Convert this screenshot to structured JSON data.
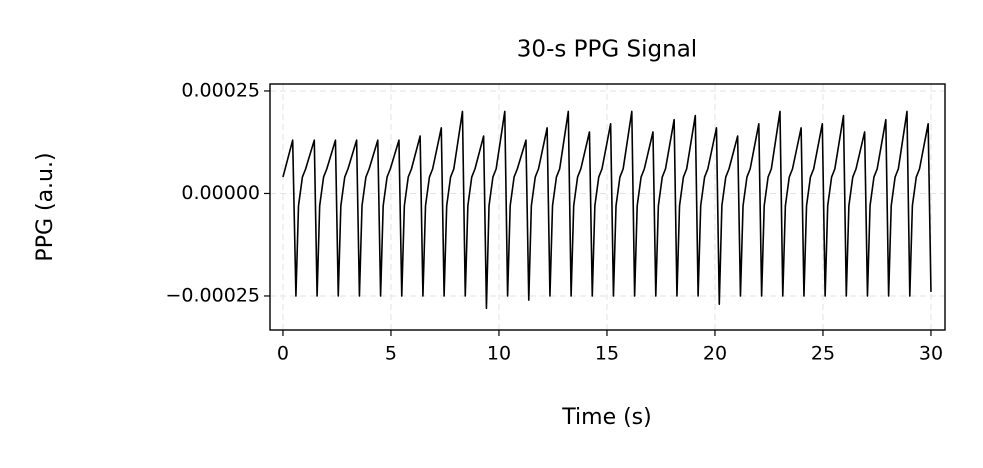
{
  "chart_data": {
    "type": "line",
    "title": "30-s PPG Signal",
    "xlabel": "Time (s)",
    "ylabel": "PPG (a.u.)",
    "xlim": [
      -0.6,
      30.65
    ],
    "ylim": [
      -0.000333,
      0.000267
    ],
    "xticks": [
      0,
      5,
      10,
      15,
      20,
      25,
      30
    ],
    "yticks": [
      {
        "value": 0.00025,
        "label": "0.00025"
      },
      {
        "value": 0,
        "label": "0.00000"
      },
      {
        "value": -0.00025,
        "label": "−0.00025"
      }
    ],
    "grid": true,
    "series": [
      {
        "color": "#000000",
        "x": [
          0,
          0.45,
          0.6,
          0.72,
          0.9,
          1.05,
          1.45,
          1.58,
          1.7,
          1.88,
          2.03,
          2.43,
          2.56,
          2.68,
          2.86,
          3.01,
          3.41,
          3.54,
          3.66,
          3.84,
          3.99,
          4.39,
          4.52,
          4.64,
          4.82,
          4.97,
          5.37,
          5.5,
          5.62,
          5.8,
          5.95,
          6.35,
          6.48,
          6.6,
          6.78,
          6.93,
          7.33,
          7.46,
          7.58,
          7.76,
          7.91,
          8.31,
          8.44,
          8.56,
          8.74,
          8.89,
          9.29,
          9.42,
          9.54,
          9.72,
          9.87,
          10.27,
          10.4,
          10.52,
          10.7,
          10.85,
          11.25,
          11.38,
          11.5,
          11.68,
          11.83,
          12.23,
          12.36,
          12.48,
          12.66,
          12.81,
          13.21,
          13.34,
          13.46,
          13.64,
          13.79,
          14.19,
          14.32,
          14.44,
          14.62,
          14.77,
          15.17,
          15.3,
          15.42,
          15.6,
          15.75,
          16.15,
          16.28,
          16.4,
          16.58,
          16.73,
          17.13,
          17.26,
          17.38,
          17.56,
          17.71,
          18.11,
          18.24,
          18.36,
          18.54,
          18.69,
          19.09,
          19.22,
          19.34,
          19.52,
          19.67,
          20.07,
          20.2,
          20.32,
          20.5,
          20.65,
          21.05,
          21.18,
          21.3,
          21.48,
          21.63,
          22.03,
          22.16,
          22.28,
          22.46,
          22.61,
          23.01,
          23.14,
          23.26,
          23.44,
          23.59,
          23.99,
          24.12,
          24.24,
          24.42,
          24.57,
          24.97,
          25.1,
          25.22,
          25.4,
          25.55,
          25.95,
          26.08,
          26.2,
          26.38,
          26.53,
          26.93,
          27.06,
          27.18,
          27.36,
          27.51,
          27.91,
          28.04,
          28.16,
          28.34,
          28.49,
          28.89,
          29.02,
          29.14,
          29.32,
          29.47,
          29.87,
          30
        ],
        "values": [
          4e-05,
          0.00013,
          -0.00025,
          -3e-05,
          4e-05,
          6e-05,
          0.00013,
          -0.00025,
          -3e-05,
          4e-05,
          6e-05,
          0.00013,
          -0.00025,
          -3e-05,
          4e-05,
          6e-05,
          0.00013,
          -0.00025,
          -3e-05,
          4e-05,
          6e-05,
          0.00013,
          -0.00025,
          -3e-05,
          4e-05,
          6e-05,
          0.00013,
          -0.00025,
          -3e-05,
          4e-05,
          6e-05,
          0.00014,
          -0.00025,
          -3e-05,
          4e-05,
          6e-05,
          0.00016,
          -0.00025,
          -3e-05,
          4e-05,
          6e-05,
          0.0002,
          -0.00025,
          -3e-05,
          4e-05,
          6e-05,
          0.00014,
          -0.00028,
          -3e-05,
          4e-05,
          6e-05,
          0.0002,
          -0.00025,
          -3e-05,
          4e-05,
          6e-05,
          0.00013,
          -0.00026,
          -3e-05,
          4e-05,
          6e-05,
          0.00016,
          -0.00025,
          -3e-05,
          4e-05,
          6e-05,
          0.0002,
          -0.00025,
          -3e-05,
          4e-05,
          6e-05,
          0.00015,
          -0.00025,
          -3e-05,
          4e-05,
          6e-05,
          0.00017,
          -0.00025,
          -3e-05,
          4e-05,
          6e-05,
          0.0002,
          -0.00025,
          -3e-05,
          4e-05,
          6e-05,
          0.00015,
          -0.00025,
          -3e-05,
          4e-05,
          6e-05,
          0.00018,
          -0.00025,
          -3e-05,
          4e-05,
          6e-05,
          0.00019,
          -0.00025,
          -3e-05,
          4e-05,
          6e-05,
          0.00016,
          -0.00027,
          -3e-05,
          4e-05,
          6e-05,
          0.00014,
          -0.00025,
          -3e-05,
          4e-05,
          6e-05,
          0.00017,
          -0.00025,
          -3e-05,
          4e-05,
          6e-05,
          0.0002,
          -0.00025,
          -3e-05,
          4e-05,
          6e-05,
          0.00016,
          -0.00025,
          -3e-05,
          4e-05,
          6e-05,
          0.00017,
          -0.00025,
          -3e-05,
          4e-05,
          6e-05,
          0.00019,
          -0.00025,
          -3e-05,
          4e-05,
          6e-05,
          0.00015,
          -0.00025,
          -3e-05,
          4e-05,
          6e-05,
          0.00018,
          -0.00025,
          -3e-05,
          4e-05,
          6e-05,
          0.0002,
          -0.00025,
          -3e-05,
          4e-05,
          6e-05,
          0.00017,
          -0.00024
        ]
      }
    ]
  }
}
